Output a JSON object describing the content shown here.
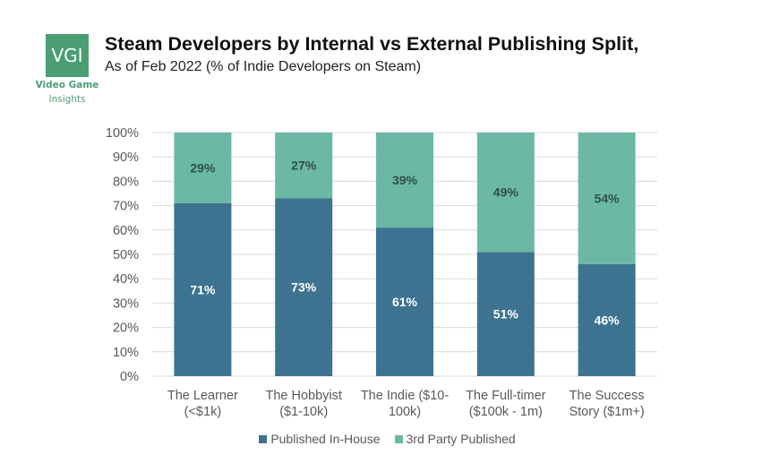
{
  "logo": {
    "mark": "VGI",
    "line1": "Video Game",
    "line2": "Insights"
  },
  "header": {
    "title": "Steam Developers by Internal vs External Publishing Split,",
    "subtitle": "As of Feb 2022 (% of Indie Developers on Steam)"
  },
  "colors": {
    "in_house": "#3d7391",
    "third_party": "#6bb8a5",
    "logo": "#4a9e72"
  },
  "chart_data": {
    "type": "bar",
    "stacked": true,
    "title": "Steam Developers by Internal vs External Publishing Split, As of Feb 2022 (% of Indie Developers on Steam)",
    "xlabel": "",
    "ylabel": "",
    "ylim": [
      0,
      100
    ],
    "yticks": [
      "0%",
      "10%",
      "20%",
      "30%",
      "40%",
      "50%",
      "60%",
      "70%",
      "80%",
      "90%",
      "100%"
    ],
    "grid": true,
    "legend_position": "bottom",
    "categories": [
      [
        "The Learner",
        "(<$1k)"
      ],
      [
        "The Hobbyist",
        "($1-10k)"
      ],
      [
        "The Indie ($10-",
        "100k)"
      ],
      [
        "The Full-timer",
        "($100k - 1m)"
      ],
      [
        "The Success",
        "Story ($1m+)"
      ]
    ],
    "series": [
      {
        "name": "Published In-House",
        "values": [
          71,
          73,
          61,
          51,
          46
        ],
        "labels": [
          "71%",
          "73%",
          "61%",
          "51%",
          "46%"
        ]
      },
      {
        "name": "3rd Party Published",
        "values": [
          29,
          27,
          39,
          49,
          54
        ],
        "labels": [
          "29%",
          "27%",
          "39%",
          "49%",
          "54%"
        ]
      }
    ]
  }
}
